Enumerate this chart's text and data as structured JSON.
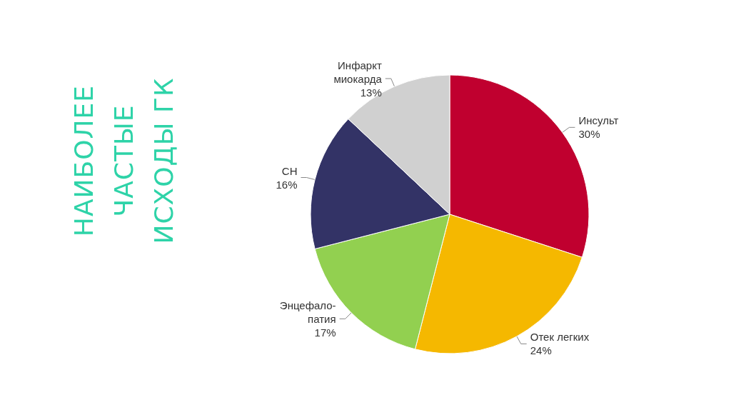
{
  "chart_data": {
    "type": "pie",
    "title": "НАИБОЛЕЕ ЧАСТЫЕ ИСХОДЫ ГК",
    "categories": [
      "Инсульт",
      "Отек легких",
      "Энцефало-\nпатия",
      "СН",
      "Инфаркт\nмиокарда"
    ],
    "values": [
      30,
      24,
      17,
      16,
      13
    ],
    "colors": [
      "#c0002f",
      "#f5b800",
      "#92d050",
      "#333366",
      "#d0d0d0"
    ],
    "value_labels": [
      "30%",
      "24%",
      "17%",
      "16%",
      "13%"
    ]
  }
}
